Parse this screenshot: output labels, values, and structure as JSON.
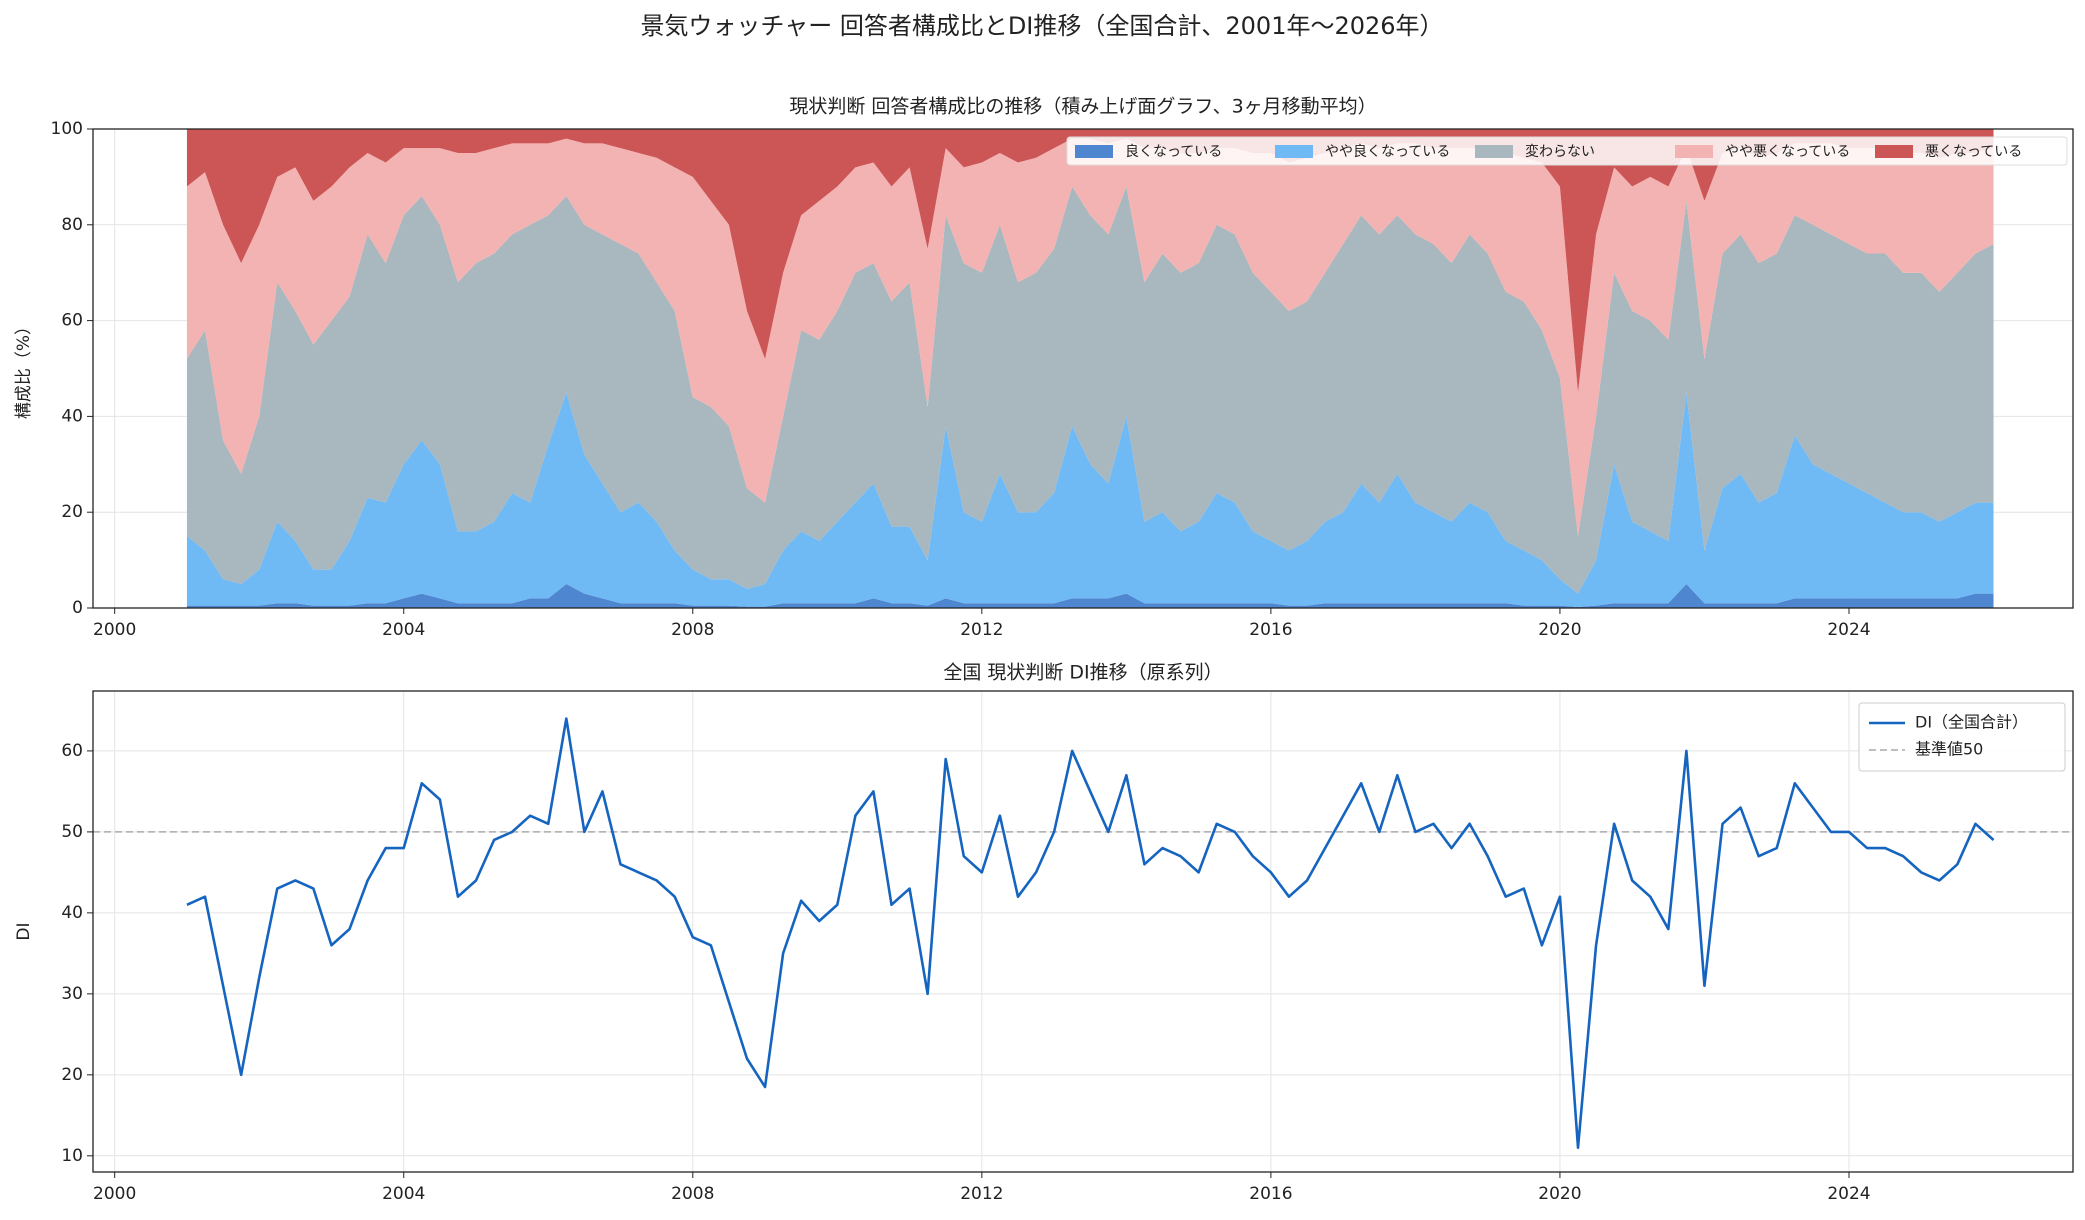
{
  "title": "景気ウォッチャー 回答者構成比とDI推移（全国合計、2001年〜2026年）",
  "chart_data": [
    {
      "type": "area",
      "stacked": true,
      "title": "現状判断 回答者構成比の推移（積み上げ面グラフ、3ヶ月移動平均）",
      "ylabel": "構成比（%）",
      "x": [
        2001,
        2001.25,
        2001.5,
        2001.75,
        2002,
        2002.25,
        2002.5,
        2002.75,
        2003,
        2003.25,
        2003.5,
        2003.75,
        2004,
        2004.25,
        2004.5,
        2004.75,
        2005,
        2005.25,
        2005.5,
        2005.75,
        2006,
        2006.25,
        2006.5,
        2006.75,
        2007,
        2007.25,
        2007.5,
        2007.75,
        2008,
        2008.25,
        2008.5,
        2008.75,
        2009,
        2009.25,
        2009.5,
        2009.75,
        2010,
        2010.25,
        2010.5,
        2010.75,
        2011,
        2011.25,
        2011.5,
        2011.75,
        2012,
        2012.25,
        2012.5,
        2012.75,
        2013,
        2013.25,
        2013.5,
        2013.75,
        2014,
        2014.25,
        2014.5,
        2014.75,
        2015,
        2015.25,
        2015.5,
        2015.75,
        2016,
        2016.25,
        2016.5,
        2016.75,
        2017,
        2017.25,
        2017.5,
        2017.75,
        2018,
        2018.25,
        2018.5,
        2018.75,
        2019,
        2019.25,
        2019.5,
        2019.75,
        2020,
        2020.25,
        2020.5,
        2020.75,
        2021,
        2021.25,
        2021.5,
        2021.75,
        2022,
        2022.25,
        2022.5,
        2022.75,
        2023,
        2023.25,
        2023.5,
        2023.75,
        2024,
        2024.25,
        2024.5,
        2024.75,
        2025,
        2025.25,
        2025.5,
        2025.75,
        2026
      ],
      "series": [
        {
          "name": "良くなっている",
          "color": "#4f86d0",
          "values": [
            0.5,
            0.5,
            0.5,
            0.5,
            0.5,
            1,
            1,
            0.5,
            0.5,
            0.5,
            1,
            1,
            2,
            3,
            2,
            1,
            1,
            1,
            1,
            2,
            2,
            5,
            3,
            2,
            1,
            1,
            1,
            1,
            0.5,
            0.5,
            0.5,
            0.3,
            0.3,
            1,
            1,
            1,
            1,
            1,
            2,
            1,
            1,
            0.5,
            2,
            1,
            1,
            1,
            1,
            1,
            1,
            2,
            2,
            2,
            3,
            1,
            1,
            1,
            1,
            1,
            1,
            1,
            1,
            0.5,
            0.5,
            1,
            1,
            1,
            1,
            1,
            1,
            1,
            1,
            1,
            1,
            1,
            0.5,
            0.5,
            0.5,
            0.2,
            0.5,
            1,
            1,
            1,
            1,
            5,
            1,
            1,
            1,
            1,
            1,
            2,
            2,
            2,
            2,
            2,
            2,
            2,
            2,
            2,
            2,
            3,
            3
          ]
        },
        {
          "name": "やや良くなっている",
          "color": "#6fb9f5",
          "values": [
            14.5,
            11.5,
            5.5,
            4.5,
            7.5,
            17,
            13,
            7.5,
            7.5,
            13.5,
            22,
            21,
            28,
            32,
            28,
            15,
            15,
            17,
            23,
            20,
            32,
            40,
            29,
            24,
            19,
            21,
            17,
            11,
            7.5,
            5.5,
            5.5,
            3.7,
            4.7,
            11,
            15,
            13,
            17,
            21,
            24,
            16,
            16,
            9.5,
            36,
            19,
            17,
            27,
            19,
            19,
            23,
            36,
            28,
            24,
            37,
            17,
            19,
            15,
            17,
            23,
            21,
            15,
            13,
            11.5,
            13.5,
            17,
            19,
            25,
            21,
            27,
            21,
            19,
            17,
            21,
            19,
            13,
            11.5,
            9.5,
            5.5,
            2.8,
            9.5,
            29,
            17,
            15,
            13,
            40,
            11,
            24,
            27,
            21,
            23,
            34,
            28,
            26,
            24,
            22,
            20,
            18,
            18,
            16,
            18,
            19,
            19
          ]
        },
        {
          "name": "変わらない",
          "color": "#a9b7bf",
          "values": [
            37,
            46,
            29,
            23,
            32,
            50,
            48,
            47,
            52,
            51,
            55,
            50,
            52,
            51,
            50,
            52,
            56,
            56,
            54,
            58,
            48,
            41,
            48,
            52,
            56,
            52,
            50,
            50,
            36,
            36,
            32,
            21,
            17,
            28,
            42,
            42,
            44,
            48,
            46,
            47,
            51,
            32,
            44,
            52,
            52,
            52,
            48,
            50,
            51,
            50,
            52,
            52,
            48,
            50,
            54,
            54,
            54,
            56,
            56,
            54,
            52,
            50,
            50,
            52,
            56,
            56,
            56,
            54,
            56,
            56,
            54,
            56,
            54,
            52,
            52,
            48,
            42,
            12,
            30,
            40,
            44,
            44,
            42,
            40,
            40,
            49,
            50,
            50,
            50,
            46,
            50,
            50,
            50,
            50,
            52,
            50,
            50,
            48,
            50,
            52,
            54
          ]
        },
        {
          "name": "やや悪くなっている",
          "color": "#f4b3b3",
          "values": [
            36,
            33,
            45,
            44,
            40,
            22,
            30,
            30,
            28,
            27,
            17,
            21,
            14,
            10,
            16,
            27,
            23,
            22,
            19,
            17,
            15,
            12,
            17,
            19,
            20,
            21,
            26,
            30,
            46,
            43,
            42,
            37,
            30,
            30,
            24,
            29,
            26,
            22,
            21,
            24,
            24,
            33,
            14,
            20,
            23,
            15,
            25,
            24,
            21,
            10,
            16,
            19,
            10,
            28,
            22,
            25,
            23,
            16,
            18,
            25,
            29,
            31,
            30,
            25,
            20,
            15,
            18,
            15,
            19,
            20,
            24,
            18,
            22,
            29,
            30,
            35,
            40,
            30,
            38,
            22,
            26,
            30,
            32,
            11,
            33,
            21,
            18,
            22,
            21,
            15,
            17,
            19,
            20,
            22,
            22,
            25,
            25,
            28,
            25,
            21,
            20
          ]
        },
        {
          "name": "悪くなっている",
          "color": "#cc5555",
          "values": [
            12,
            9,
            20,
            28,
            20,
            10,
            8,
            15,
            12,
            8,
            5,
            7,
            4,
            4,
            4,
            5,
            5,
            4,
            3,
            3,
            3,
            2,
            3,
            3,
            4,
            5,
            6,
            8,
            10,
            15,
            20,
            38,
            48,
            30,
            18,
            15,
            12,
            8,
            7,
            12,
            8,
            25,
            4,
            8,
            7,
            5,
            7,
            6,
            4,
            2,
            2,
            3,
            2,
            4,
            4,
            5,
            5,
            4,
            4,
            5,
            5,
            7,
            6,
            5,
            4,
            3,
            4,
            3,
            3,
            4,
            4,
            4,
            4,
            5,
            6,
            7,
            12,
            55,
            22,
            8,
            12,
            10,
            12,
            4,
            15,
            5,
            4,
            6,
            5,
            3,
            3,
            3,
            4,
            4,
            4,
            5,
            5,
            6,
            5,
            5,
            4
          ]
        }
      ],
      "xlim": [
        1999.7,
        2027.1
      ],
      "ylim": [
        0,
        100
      ],
      "xticks": [
        2000,
        2004,
        2008,
        2012,
        2016,
        2020,
        2024
      ],
      "yticks": [
        0,
        20,
        40,
        60,
        80,
        100
      ],
      "grid": true,
      "legend": "upper right",
      "legend_layout": "row"
    },
    {
      "type": "line",
      "title": "全国 現状判断 DI推移（原系列）",
      "ylabel": "DI",
      "x": [
        2001,
        2001.25,
        2001.5,
        2001.75,
        2002,
        2002.25,
        2002.5,
        2002.75,
        2003,
        2003.25,
        2003.5,
        2003.75,
        2004,
        2004.25,
        2004.5,
        2004.75,
        2005,
        2005.25,
        2005.5,
        2005.75,
        2006,
        2006.25,
        2006.5,
        2006.75,
        2007,
        2007.25,
        2007.5,
        2007.75,
        2008,
        2008.25,
        2008.5,
        2008.75,
        2009,
        2009.25,
        2009.5,
        2009.75,
        2010,
        2010.25,
        2010.5,
        2010.75,
        2011,
        2011.25,
        2011.5,
        2011.75,
        2012,
        2012.25,
        2012.5,
        2012.75,
        2013,
        2013.25,
        2013.5,
        2013.75,
        2014,
        2014.25,
        2014.5,
        2014.75,
        2015,
        2015.25,
        2015.5,
        2015.75,
        2016,
        2016.25,
        2016.5,
        2016.75,
        2017,
        2017.25,
        2017.5,
        2017.75,
        2018,
        2018.25,
        2018.5,
        2018.75,
        2019,
        2019.25,
        2019.5,
        2019.75,
        2020,
        2020.25,
        2020.5,
        2020.75,
        2021,
        2021.25,
        2021.5,
        2021.75,
        2022,
        2022.25,
        2022.5,
        2022.75,
        2023,
        2023.25,
        2023.5,
        2023.75,
        2024,
        2024.25,
        2024.5,
        2024.75,
        2025,
        2025.25,
        2025.5,
        2025.75,
        2026
      ],
      "series": [
        {
          "name": "DI（全国合計）",
          "color": "#1565c0",
          "values": [
            41,
            42,
            31,
            20,
            32,
            43,
            44,
            43,
            36,
            38,
            44,
            48,
            48,
            56,
            54,
            42,
            44,
            49,
            50,
            52,
            51,
            64,
            50,
            55,
            46,
            45,
            44,
            42,
            37,
            36,
            29,
            22,
            18.5,
            35,
            41.5,
            39,
            41,
            52,
            55,
            41,
            43,
            30,
            59,
            47,
            45,
            52,
            42,
            45,
            50,
            60,
            55,
            50,
            57,
            46,
            48,
            47,
            45,
            51,
            50,
            47,
            45,
            42,
            44,
            48,
            52,
            56,
            50,
            57,
            50,
            51,
            48,
            51,
            47,
            42,
            43,
            36,
            42,
            11,
            36,
            51,
            44,
            42,
            38,
            60,
            31,
            51,
            53,
            47,
            48,
            56,
            53,
            50,
            50,
            48,
            48,
            47,
            45,
            44,
            46,
            51,
            49
          ]
        }
      ],
      "hlines": [
        {
          "name": "基準値50",
          "value": 50,
          "color": "#aaaaaa"
        }
      ],
      "xlim": [
        1999.7,
        2027.1
      ],
      "ylim": [
        8,
        67.4
      ],
      "xticks": [
        2000,
        2004,
        2008,
        2012,
        2016,
        2020,
        2024
      ],
      "yticks": [
        10,
        20,
        30,
        40,
        50,
        60
      ],
      "grid": true,
      "legend": "upper right",
      "legend_layout": "column"
    }
  ]
}
